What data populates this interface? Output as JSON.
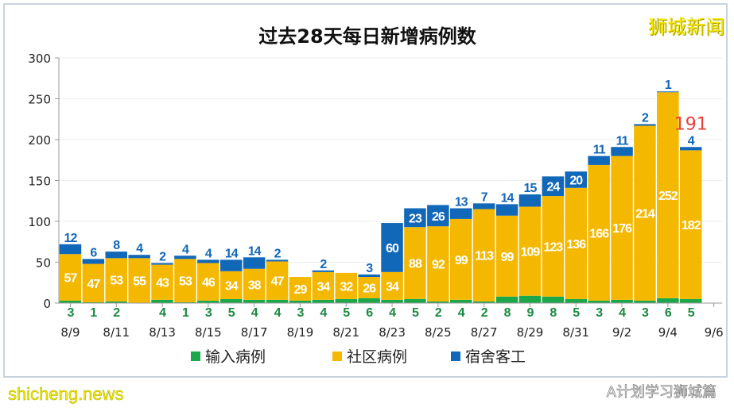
{
  "watermarks": {
    "top_right": "狮城新闻",
    "bottom_left": "shicheng.news",
    "wechat": "A计划学习狮城篇"
  },
  "chart_data": {
    "type": "bar",
    "stacked": true,
    "title": "过去28天每日新增病例数",
    "xlabel": "",
    "ylabel": "",
    "ylim": [
      0,
      300
    ],
    "yticks": [
      0,
      50,
      100,
      150,
      200,
      250,
      300
    ],
    "xtick_labels": [
      "8/9",
      "8/11",
      "8/13",
      "8/15",
      "8/17",
      "8/19",
      "8/21",
      "8/23",
      "8/25",
      "8/27",
      "8/29",
      "8/31",
      "9/2",
      "9/4",
      "9/6"
    ],
    "grid": true,
    "legend_position": "bottom",
    "categories": [
      "8/9",
      "8/10",
      "8/11",
      "8/12",
      "8/13",
      "8/14",
      "8/15",
      "8/16",
      "8/17",
      "8/18",
      "8/19",
      "8/20",
      "8/21",
      "8/22",
      "8/23",
      "8/24",
      "8/25",
      "8/26",
      "8/27",
      "8/28",
      "8/29",
      "8/30",
      "8/31",
      "9/1",
      "9/2",
      "9/3",
      "9/4",
      "9/5"
    ],
    "series": [
      {
        "name": "输入病例",
        "color": "#1aa84a",
        "values": [
          3,
          1,
          2,
          0,
          4,
          1,
          3,
          5,
          4,
          4,
          3,
          4,
          5,
          6,
          4,
          5,
          2,
          4,
          2,
          8,
          9,
          8,
          5,
          3,
          4,
          3,
          6,
          5
        ]
      },
      {
        "name": "社区病例",
        "color": "#f5b800",
        "values": [
          57,
          47,
          53,
          55,
          43,
          53,
          46,
          34,
          38,
          47,
          29,
          34,
          32,
          26,
          34,
          88,
          92,
          99,
          113,
          99,
          109,
          123,
          136,
          166,
          176,
          214,
          252,
          182
        ]
      },
      {
        "name": "宿舍客工",
        "color": "#1167b8",
        "values": [
          12,
          6,
          8,
          4,
          2,
          4,
          4,
          14,
          14,
          2,
          0,
          2,
          0,
          3,
          60,
          23,
          26,
          13,
          7,
          14,
          15,
          24,
          20,
          11,
          11,
          2,
          1,
          4
        ]
      }
    ],
    "annotations": [
      {
        "category": "9/5",
        "text": "191",
        "color": "#e8413c"
      }
    ]
  }
}
